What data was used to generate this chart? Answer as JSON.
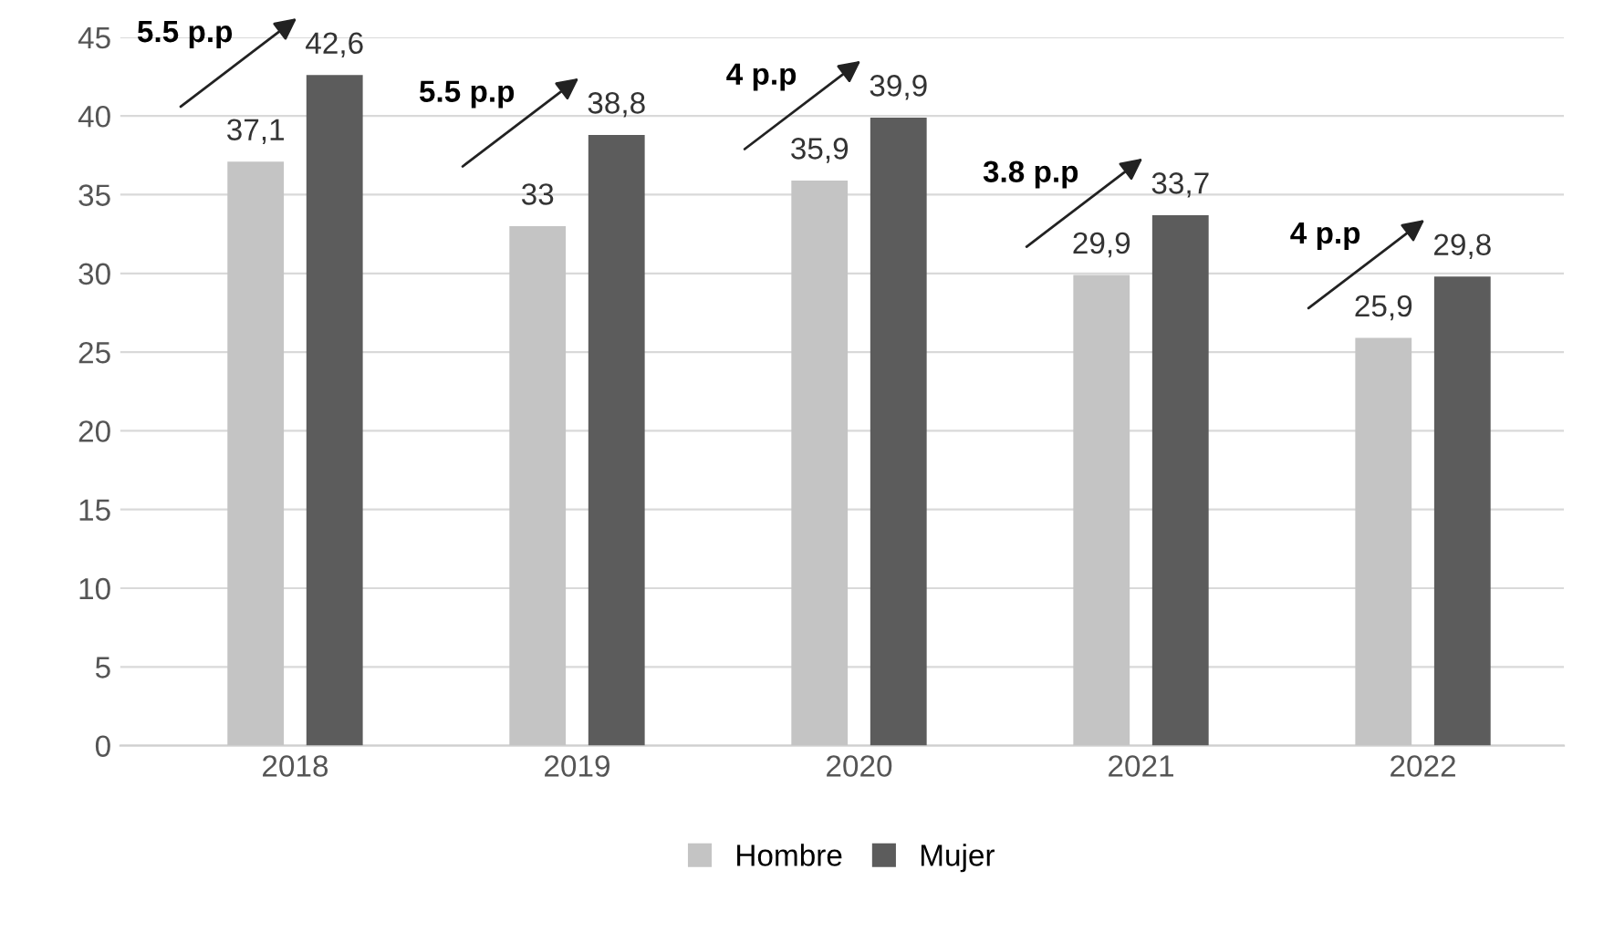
{
  "chart_data": {
    "type": "bar",
    "categories": [
      "2018",
      "2019",
      "2020",
      "2021",
      "2022"
    ],
    "series": [
      {
        "name": "Hombre",
        "color": "#c4c4c4",
        "values": [
          37.1,
          33,
          35.9,
          29.9,
          25.9
        ],
        "value_labels": [
          "37,1",
          "33",
          "35,9",
          "29,9",
          "25,9"
        ]
      },
      {
        "name": "Mujer",
        "color": "#5c5c5c",
        "values": [
          42.6,
          38.8,
          39.9,
          33.7,
          29.8
        ],
        "value_labels": [
          "42,6",
          "38,8",
          "39,9",
          "33,7",
          "29,8"
        ]
      }
    ],
    "ylim": [
      0,
      45
    ],
    "yticks": [
      0,
      5,
      10,
      15,
      20,
      25,
      30,
      35,
      40,
      45
    ],
    "grid": "y",
    "legend": "bottom",
    "annotations": [
      "5.5 p.p",
      "5.5 p.p",
      "4 p.p",
      "3.8 p.p",
      "4 p.p"
    ]
  }
}
